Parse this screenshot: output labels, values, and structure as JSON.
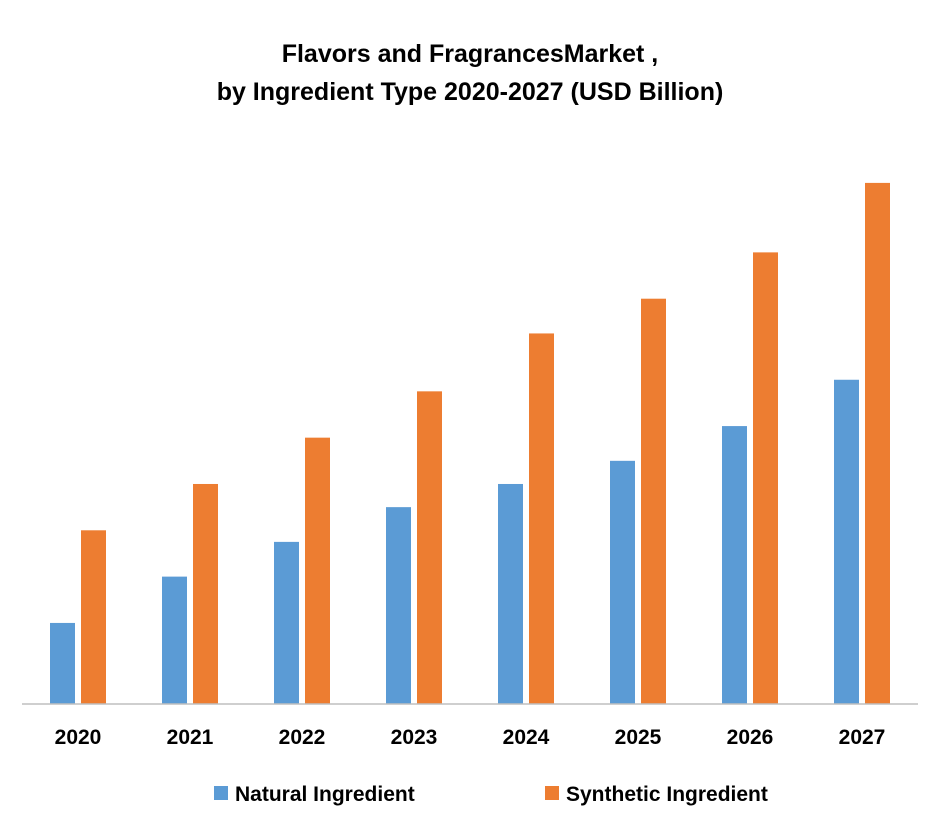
{
  "chart_data": {
    "type": "bar",
    "title": [
      "Flavors and FragrancesMarket  ,",
      "by Ingredient Type 2020-2027 (USD Billion)"
    ],
    "xlabel": "",
    "ylabel": "",
    "categories": [
      "2020",
      "2021",
      "2022",
      "2023",
      "2024",
      "2025",
      "2026",
      "2027"
    ],
    "series": [
      {
        "name": "Natural Ingredient",
        "color": "#5B9BD5",
        "values": [
          7,
          11,
          14,
          17,
          19,
          21,
          24,
          28
        ]
      },
      {
        "name": "Synthetic Ingredient",
        "color": "#ED7D31",
        "values": [
          15,
          19,
          23,
          27,
          32,
          35,
          39,
          45
        ]
      }
    ],
    "ylim": [
      0,
      50
    ],
    "grid": false,
    "y_axis_visible": false,
    "legend_position": "bottom"
  }
}
